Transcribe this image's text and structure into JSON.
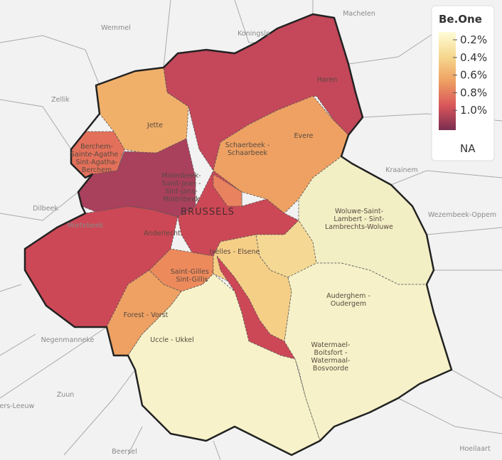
{
  "places": [
    "Machelen",
    "Wemmel",
    "Koningslo",
    "Zellik",
    "Dilbeek",
    "Kraainem",
    "Wezembeek-Oppem",
    "Negenmanneke",
    "Zuun",
    "Pieters-Leeuw",
    "Beersel",
    "Hoeilaart",
    "Mortebeek"
  ],
  "regions": [
    [
      "Haren"
    ],
    [
      "Jette"
    ],
    [
      "Berchem-",
      "Sainte-Agathe -",
      "Sint-Agatha-",
      "Berchem"
    ],
    [
      "Schaerbeek -",
      "Schaarbeek"
    ],
    [
      "Evere"
    ],
    [
      "Molenbeek-",
      "Saint-Jean -",
      "Sint-Jans-",
      "Molenbeek"
    ],
    [
      "BRUSSELS"
    ],
    [
      "Anderlecht"
    ],
    [
      "Woluwe-Saint-",
      "Lambert - Sint-",
      "Lambrechts-Woluwe"
    ],
    [
      "Ixelles - Elsene"
    ],
    [
      "Saint-Gilles -",
      "Sint-Gillis"
    ],
    [
      "Auderghem -",
      "Oudergem"
    ],
    [
      "Forest - Vorst"
    ],
    [
      "Uccle - Ukkel"
    ],
    [
      "Watermael-",
      "Boitsfort -",
      "Watermaal-",
      "Bosvoorde"
    ]
  ],
  "legend": {
    "title": "Be.One",
    "labels": [
      "0.2%",
      "0.4%",
      "0.6%",
      "0.8%",
      "1.0%"
    ],
    "na": "NA"
  }
}
